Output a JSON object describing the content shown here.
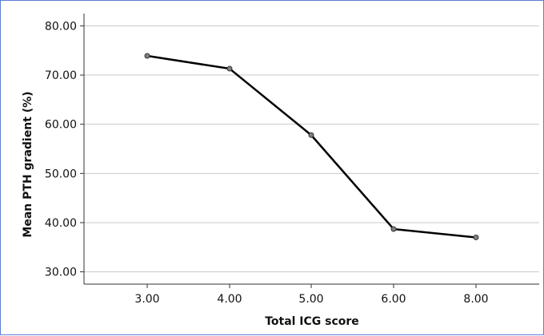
{
  "chart_data": {
    "type": "line",
    "xlabel": "Total ICG score",
    "ylabel": "Mean PTH gradient (%)",
    "categories": [
      "3.00",
      "4.00",
      "5.00",
      "6.00",
      "8.00"
    ],
    "values": [
      73.9,
      71.3,
      57.8,
      38.7,
      37.0
    ],
    "ylim": [
      27.5,
      82.5
    ],
    "yticks": [
      "30.00",
      "40.00",
      "50.00",
      "60.00",
      "70.00",
      "80.00"
    ],
    "grid": "horizontal",
    "colors": {
      "line": "#000000",
      "marker": "#808080",
      "grid": "#c8c8c8",
      "border": "#5b7fd6"
    }
  }
}
